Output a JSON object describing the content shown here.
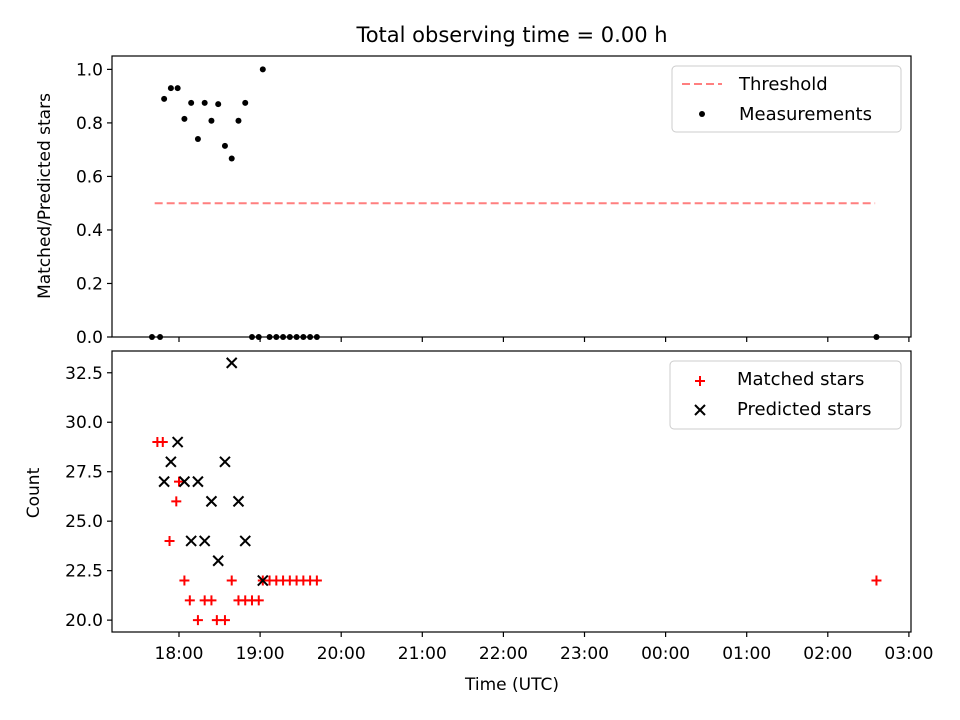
{
  "chart_data": [
    {
      "type": "scatter",
      "title": "Total observing time = 0.00 h",
      "xlabel": "",
      "ylabel": "Matched/Predicted stars",
      "ylim": [
        0,
        1.05
      ],
      "yticks": [
        "0.0",
        "0.2",
        "0.4",
        "0.6",
        "0.8",
        "1.0"
      ],
      "xticks_labeled": false,
      "legend_position": "top-right",
      "threshold": {
        "name": "Threshold",
        "y": 0.5,
        "x_start": "17:42",
        "x_end": "02:35",
        "color": "#ff7f7f"
      },
      "series": [
        {
          "name": "Measurements",
          "color": "#000000",
          "points": [
            {
              "x": "17:40",
              "y": 0.0
            },
            {
              "x": "17:46",
              "y": 0.0
            },
            {
              "x": "17:49",
              "y": 0.89
            },
            {
              "x": "17:54",
              "y": 0.93
            },
            {
              "x": "17:59",
              "y": 0.93
            },
            {
              "x": "18:04",
              "y": 0.815
            },
            {
              "x": "18:09",
              "y": 0.875
            },
            {
              "x": "18:14",
              "y": 0.74
            },
            {
              "x": "18:19",
              "y": 0.875
            },
            {
              "x": "18:24",
              "y": 0.808
            },
            {
              "x": "18:29",
              "y": 0.87
            },
            {
              "x": "18:34",
              "y": 0.714
            },
            {
              "x": "18:39",
              "y": 0.667
            },
            {
              "x": "18:44",
              "y": 0.808
            },
            {
              "x": "18:49",
              "y": 0.875
            },
            {
              "x": "18:54",
              "y": 0.0
            },
            {
              "x": "18:59",
              "y": 0.0
            },
            {
              "x": "19:02",
              "y": 1.0
            },
            {
              "x": "19:07",
              "y": 0.0
            },
            {
              "x": "19:12",
              "y": 0.0
            },
            {
              "x": "19:17",
              "y": 0.0
            },
            {
              "x": "19:22",
              "y": 0.0
            },
            {
              "x": "19:27",
              "y": 0.0
            },
            {
              "x": "19:32",
              "y": 0.0
            },
            {
              "x": "19:37",
              "y": 0.0
            },
            {
              "x": "19:42",
              "y": 0.0
            },
            {
              "x": "02:36",
              "y": 0.0
            }
          ]
        }
      ]
    },
    {
      "type": "scatter",
      "title": "",
      "xlabel": "Time (UTC)",
      "ylabel": "Count",
      "ylim": [
        19.4,
        33.6
      ],
      "yticks": [
        "20.0",
        "22.5",
        "25.0",
        "27.5",
        "30.0",
        "32.5"
      ],
      "xticks": [
        "18:00",
        "19:00",
        "20:00",
        "21:00",
        "22:00",
        "23:00",
        "00:00",
        "01:00",
        "02:00",
        "03:00"
      ],
      "legend_position": "top-right",
      "series": [
        {
          "name": "Matched stars",
          "marker": "+",
          "color": "#ff0000",
          "points": [
            {
              "x": "17:44",
              "y": 29
            },
            {
              "x": "17:48",
              "y": 29
            },
            {
              "x": "17:53",
              "y": 24
            },
            {
              "x": "17:58",
              "y": 26
            },
            {
              "x": "18:00",
              "y": 27
            },
            {
              "x": "18:04",
              "y": 22
            },
            {
              "x": "18:08",
              "y": 21
            },
            {
              "x": "18:14",
              "y": 20
            },
            {
              "x": "18:19",
              "y": 21
            },
            {
              "x": "18:24",
              "y": 21
            },
            {
              "x": "18:28",
              "y": 20
            },
            {
              "x": "18:34",
              "y": 20
            },
            {
              "x": "18:39",
              "y": 22
            },
            {
              "x": "18:44",
              "y": 21
            },
            {
              "x": "18:49",
              "y": 21
            },
            {
              "x": "18:54",
              "y": 21
            },
            {
              "x": "18:59",
              "y": 21
            },
            {
              "x": "19:02",
              "y": 22
            },
            {
              "x": "19:07",
              "y": 22
            },
            {
              "x": "19:12",
              "y": 22
            },
            {
              "x": "19:17",
              "y": 22
            },
            {
              "x": "19:22",
              "y": 22
            },
            {
              "x": "19:27",
              "y": 22
            },
            {
              "x": "19:32",
              "y": 22
            },
            {
              "x": "19:37",
              "y": 22
            },
            {
              "x": "19:42",
              "y": 22
            },
            {
              "x": "02:36",
              "y": 22
            }
          ]
        },
        {
          "name": "Predicted stars",
          "marker": "x",
          "color": "#000000",
          "points": [
            {
              "x": "17:49",
              "y": 27
            },
            {
              "x": "17:54",
              "y": 28
            },
            {
              "x": "17:59",
              "y": 29
            },
            {
              "x": "18:04",
              "y": 27
            },
            {
              "x": "18:09",
              "y": 24
            },
            {
              "x": "18:14",
              "y": 27
            },
            {
              "x": "18:19",
              "y": 24
            },
            {
              "x": "18:24",
              "y": 26
            },
            {
              "x": "18:29",
              "y": 23
            },
            {
              "x": "18:34",
              "y": 28
            },
            {
              "x": "18:39",
              "y": 33
            },
            {
              "x": "18:44",
              "y": 26
            },
            {
              "x": "18:49",
              "y": 24
            },
            {
              "x": "19:02",
              "y": 22
            }
          ]
        }
      ]
    }
  ]
}
